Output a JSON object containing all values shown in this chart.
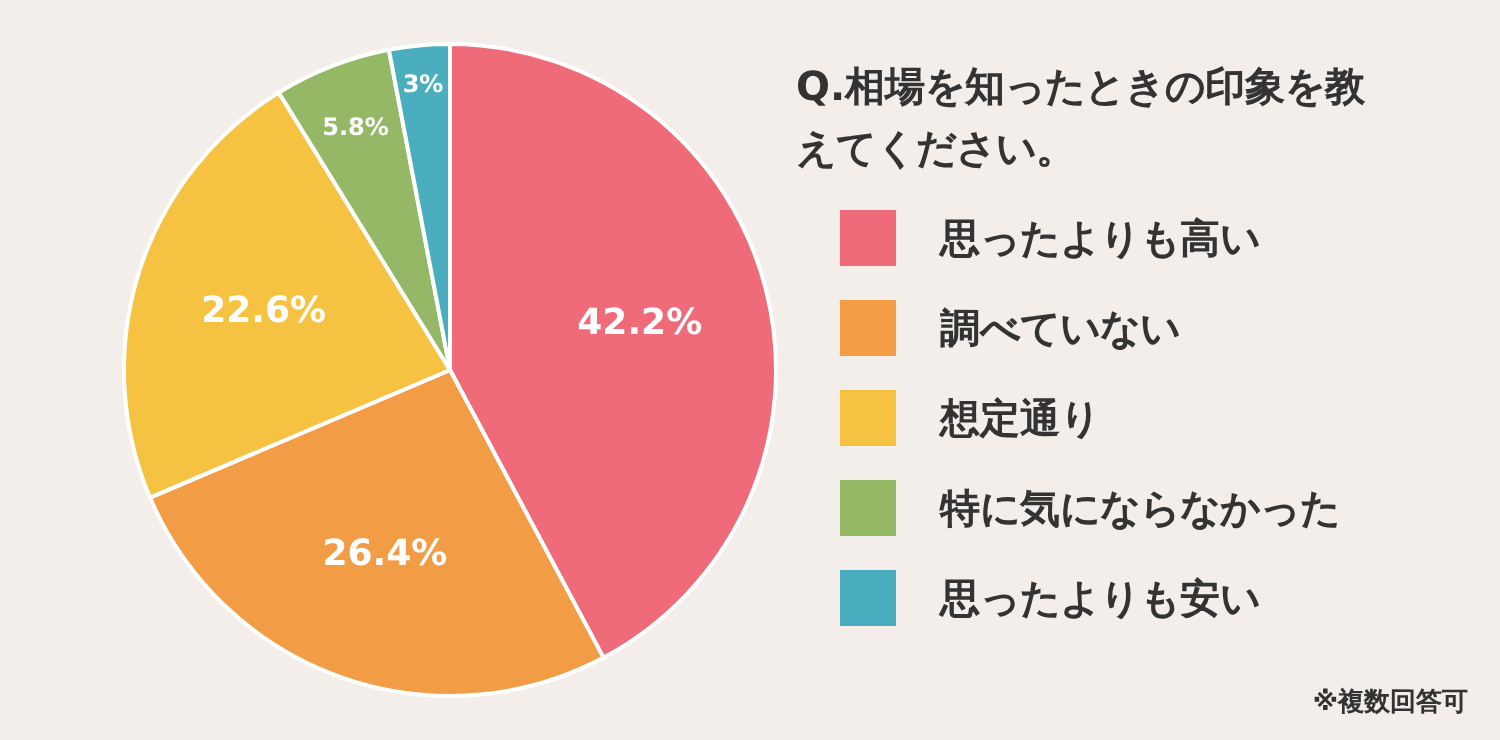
{
  "chart_data": {
    "type": "pie",
    "title": "Q.相場を知ったときの印象を教えてください。",
    "categories": [
      "思ったよりも高い",
      "調べていない",
      "想定通り",
      "特に気にならなかった",
      "思ったよりも安い"
    ],
    "values": [
      42.2,
      26.4,
      22.6,
      5.8,
      3
    ],
    "colors": [
      "#ef6b7a",
      "#f29d45",
      "#f5c242",
      "#94b865",
      "#4aaebf"
    ],
    "value_labels": [
      "42.2%",
      "26.4%",
      "22.6%",
      "5.8%",
      "3%"
    ],
    "legend": "right",
    "annotations": [
      "※複数回答可"
    ]
  }
}
